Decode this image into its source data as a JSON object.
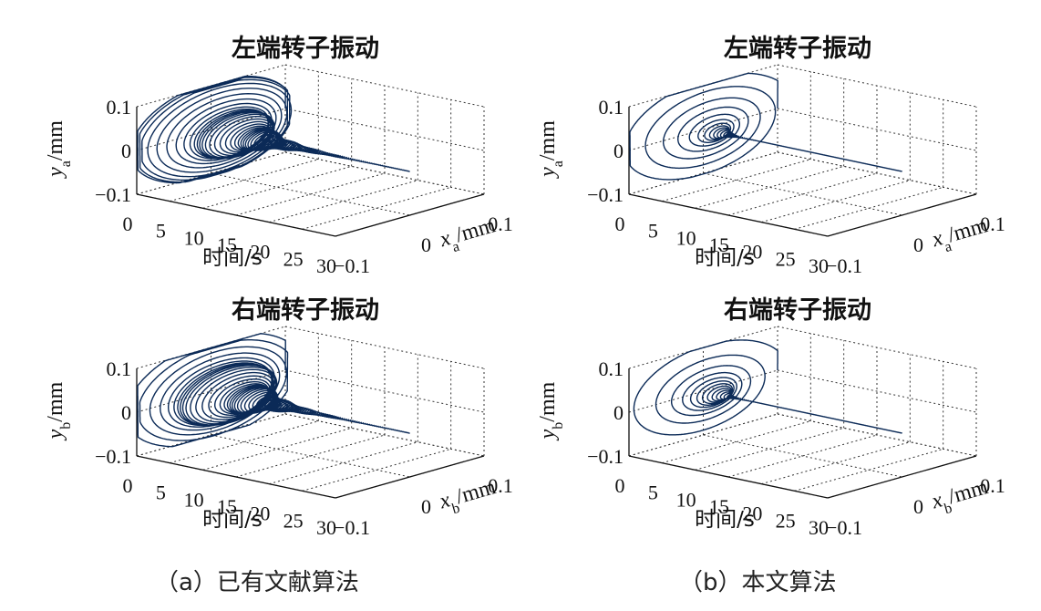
{
  "figure": {
    "captions": [
      "（a）已有文献算法",
      "（b）本文算法"
    ]
  },
  "chart_data": [
    {
      "type": "line3d",
      "title": "左端转子振动",
      "xlabel": "时间/s",
      "ylabel_var": "y",
      "ylabel_sub": "a",
      "ylabel_unit": "/mm",
      "zlabel_var": "x",
      "zlabel_sub": "a",
      "zlabel_unit": "/mm",
      "time_ticks": [
        "0",
        "5",
        "10",
        "15",
        "20",
        "25",
        "30"
      ],
      "y_ticks": [
        "0.1",
        "0",
        "−0.1"
      ],
      "x_ticks": [
        "−0.1",
        "0",
        "0.1"
      ],
      "time_range": [
        0,
        30
      ],
      "y_range": [
        -0.1,
        0.1
      ],
      "x_range": [
        -0.1,
        0.1
      ],
      "grid": true,
      "trajectory": {
        "initial_amplitude": 0.11,
        "decay_time_s": 4.5,
        "final_amplitude": 0.0,
        "end_time_s": 30
      },
      "color": "#0b2a57"
    },
    {
      "type": "line3d",
      "title": "左端转子振动",
      "xlabel": "时间/s",
      "ylabel_var": "y",
      "ylabel_sub": "a",
      "ylabel_unit": "/mm",
      "zlabel_var": "x",
      "zlabel_sub": "a",
      "zlabel_unit": "/mm",
      "time_ticks": [
        "0",
        "5",
        "10",
        "15",
        "20",
        "25",
        "30"
      ],
      "y_ticks": [
        "0.1",
        "0",
        "−0.1"
      ],
      "x_ticks": [
        "−0.1",
        "0",
        "0.1"
      ],
      "time_range": [
        0,
        30
      ],
      "y_range": [
        -0.1,
        0.1
      ],
      "x_range": [
        -0.1,
        0.1
      ],
      "grid": true,
      "trajectory": {
        "initial_amplitude": 0.11,
        "decay_time_s": 1.2,
        "final_amplitude": 0.0,
        "end_time_s": 30
      },
      "color": "#0b2a57"
    },
    {
      "type": "line3d",
      "title": "右端转子振动",
      "xlabel": "时间/s",
      "ylabel_var": "y",
      "ylabel_sub": "b",
      "ylabel_unit": "/mm",
      "zlabel_var": "x",
      "zlabel_sub": "b",
      "zlabel_unit": "/mm",
      "time_ticks": [
        "0",
        "5",
        "10",
        "15",
        "20",
        "25",
        "30"
      ],
      "y_ticks": [
        "0.1",
        "0",
        "−0.1"
      ],
      "x_ticks": [
        "−0.1",
        "0",
        "0.1"
      ],
      "time_range": [
        0,
        30
      ],
      "y_range": [
        -0.1,
        0.1
      ],
      "x_range": [
        -0.1,
        0.1
      ],
      "grid": true,
      "trajectory": {
        "initial_amplitude": 0.11,
        "decay_time_s": 4.5,
        "final_amplitude": 0.0,
        "end_time_s": 30
      },
      "color": "#0b2a57"
    },
    {
      "type": "line3d",
      "title": "右端转子振动",
      "xlabel": "时间/s",
      "ylabel_var": "y",
      "ylabel_sub": "b",
      "ylabel_unit": "/mm",
      "zlabel_var": "x",
      "zlabel_sub": "b",
      "zlabel_unit": "/mm",
      "time_ticks": [
        "0",
        "5",
        "10",
        "15",
        "20",
        "25",
        "30"
      ],
      "y_ticks": [
        "0.1",
        "0",
        "−0.1"
      ],
      "x_ticks": [
        "−0.1",
        "0",
        "0.1"
      ],
      "time_range": [
        0,
        30
      ],
      "y_range": [
        -0.1,
        0.1
      ],
      "x_range": [
        -0.1,
        0.1
      ],
      "grid": true,
      "trajectory": {
        "initial_amplitude": 0.11,
        "decay_time_s": 1.2,
        "final_amplitude": 0.0,
        "end_time_s": 30
      },
      "color": "#0b2a57"
    }
  ]
}
